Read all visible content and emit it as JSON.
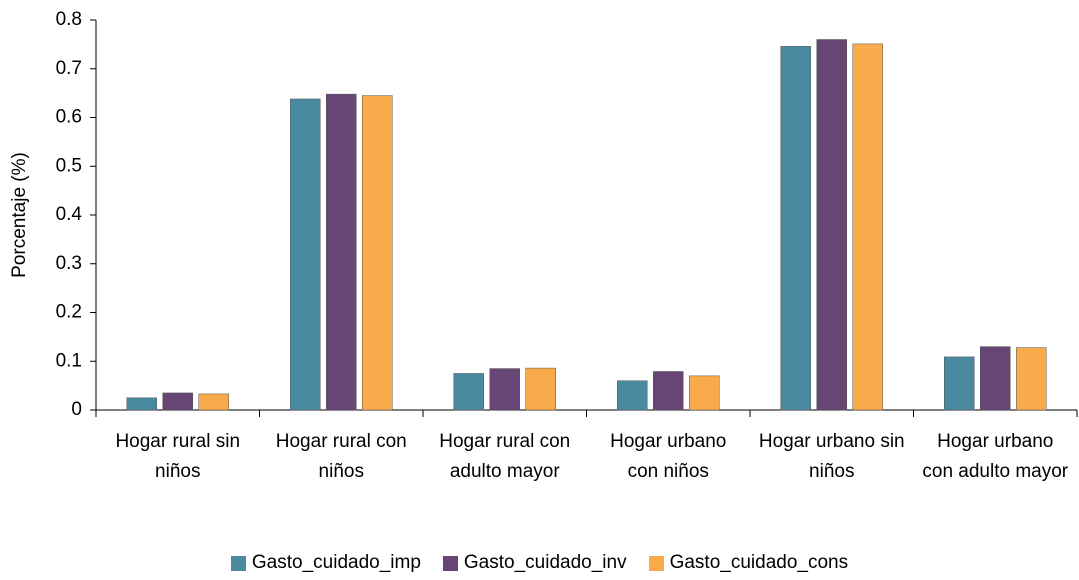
{
  "chart_data": {
    "type": "bar",
    "y_label": "Porcentaje (%)",
    "categories": [
      "Hogar rural sin niños",
      "Hogar rural con niños",
      "Hogar rural con adulto mayor",
      "Hogar urbano con niños",
      "Hogar urbano sin niños",
      "Hogar urbano con adulto mayor"
    ],
    "series": [
      {
        "name": "Gasto_cuidado_imp",
        "color": "#4a8aa0",
        "values": [
          0.025,
          0.638,
          0.075,
          0.06,
          0.746,
          0.109
        ]
      },
      {
        "name": "Gasto_cuidado_inv",
        "color": "#674575",
        "values": [
          0.035,
          0.648,
          0.085,
          0.079,
          0.76,
          0.13
        ]
      },
      {
        "name": "Gasto_cuidado_cons",
        "color": "#f9aa4a",
        "values": [
          0.033,
          0.645,
          0.086,
          0.07,
          0.751,
          0.128
        ]
      }
    ],
    "ylim": [
      0,
      0.8
    ],
    "yticks": [
      0,
      0.1,
      0.2,
      0.3,
      0.4,
      0.5,
      0.6,
      0.7,
      0.8
    ]
  }
}
